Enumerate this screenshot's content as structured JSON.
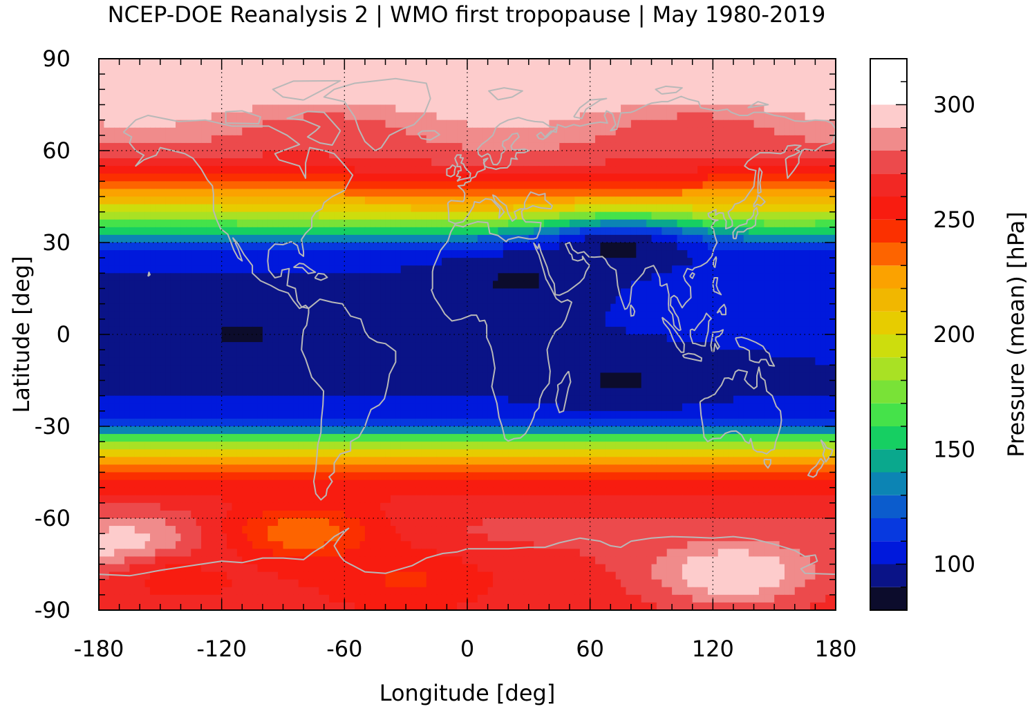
{
  "chart_data": {
    "type": "heatmap",
    "title": "NCEP-DOE Reanalysis 2 | WMO first tropopause | May 1980-2019",
    "xlabel": "Longitude [deg]",
    "ylabel": "Latitude [deg]",
    "colorbar_label": "Pressure (mean) [hPa]",
    "xlim": [
      -180,
      180
    ],
    "ylim": [
      -90,
      90
    ],
    "x_ticks": [
      -180,
      -120,
      -60,
      0,
      60,
      120,
      180
    ],
    "x_tick_labels": [
      "-180",
      "-120",
      "-60",
      "0",
      "60",
      "120",
      "180"
    ],
    "y_ticks": [
      90,
      60,
      30,
      0,
      -30,
      -60,
      -90
    ],
    "y_tick_labels": [
      "90",
      "60",
      "30",
      "0",
      "-30",
      "-60",
      "-90"
    ],
    "grid": true,
    "coastlines": true,
    "colorbar": {
      "range": [
        80,
        320
      ],
      "step": 10,
      "ticks": [
        100,
        150,
        200,
        250,
        300
      ],
      "tick_labels": [
        "100",
        "150",
        "200",
        "250",
        "300"
      ],
      "colors": [
        "#0c0c2c",
        "#0a1387",
        "#0019dc",
        "#0739df",
        "#0b5ccd",
        "#0c84b4",
        "#0aa88d",
        "#16cf62",
        "#45e24a",
        "#79e237",
        "#a9e124",
        "#cddd0d",
        "#e7cc00",
        "#f1b700",
        "#fba200",
        "#fd6400",
        "#fb3000",
        "#f81c10",
        "#f22824",
        "#ec4a4c",
        "#f08b8b",
        "#fdcccc"
      ]
    },
    "zonal_mean_profile": {
      "lat": [
        90,
        85,
        80,
        75,
        70,
        65,
        60,
        55,
        50,
        45,
        40,
        35,
        30,
        25,
        20,
        15,
        10,
        5,
        0,
        -5,
        -10,
        -15,
        -20,
        -25,
        -30,
        -35,
        -40,
        -45,
        -50,
        -55,
        -60,
        -65,
        -70,
        -75,
        -80,
        -85,
        -90
      ],
      "pressure_hPa": [
        320,
        315,
        305,
        295,
        285,
        280,
        275,
        265,
        245,
        225,
        200,
        165,
        125,
        105,
        100,
        100,
        100,
        100,
        100,
        100,
        100,
        100,
        100,
        105,
        125,
        175,
        215,
        240,
        255,
        265,
        270,
        272,
        270,
        268,
        265,
        265,
        265
      ]
    },
    "anomalies": [
      {
        "lon": -110,
        "lat": 0,
        "pressure_hPa": 90
      },
      {
        "lon": 75,
        "lat": 27,
        "pressure_hPa": 90
      },
      {
        "lon": 25,
        "lat": 17,
        "pressure_hPa": 90
      },
      {
        "lon": 75,
        "lat": -15,
        "pressure_hPa": 90
      },
      {
        "lon": -165,
        "lat": -70,
        "pressure_hPa": 300
      },
      {
        "lon": 130,
        "lat": -78,
        "pressure_hPa": 300
      },
      {
        "lon": -80,
        "lat": -65,
        "pressure_hPa": 235
      },
      {
        "lon": -30,
        "lat": -80,
        "pressure_hPa": 250
      },
      {
        "lon": -140,
        "lat": -80,
        "pressure_hPa": 258
      },
      {
        "lon": 120,
        "lat": 12,
        "pressure_hPa": 108
      }
    ]
  }
}
